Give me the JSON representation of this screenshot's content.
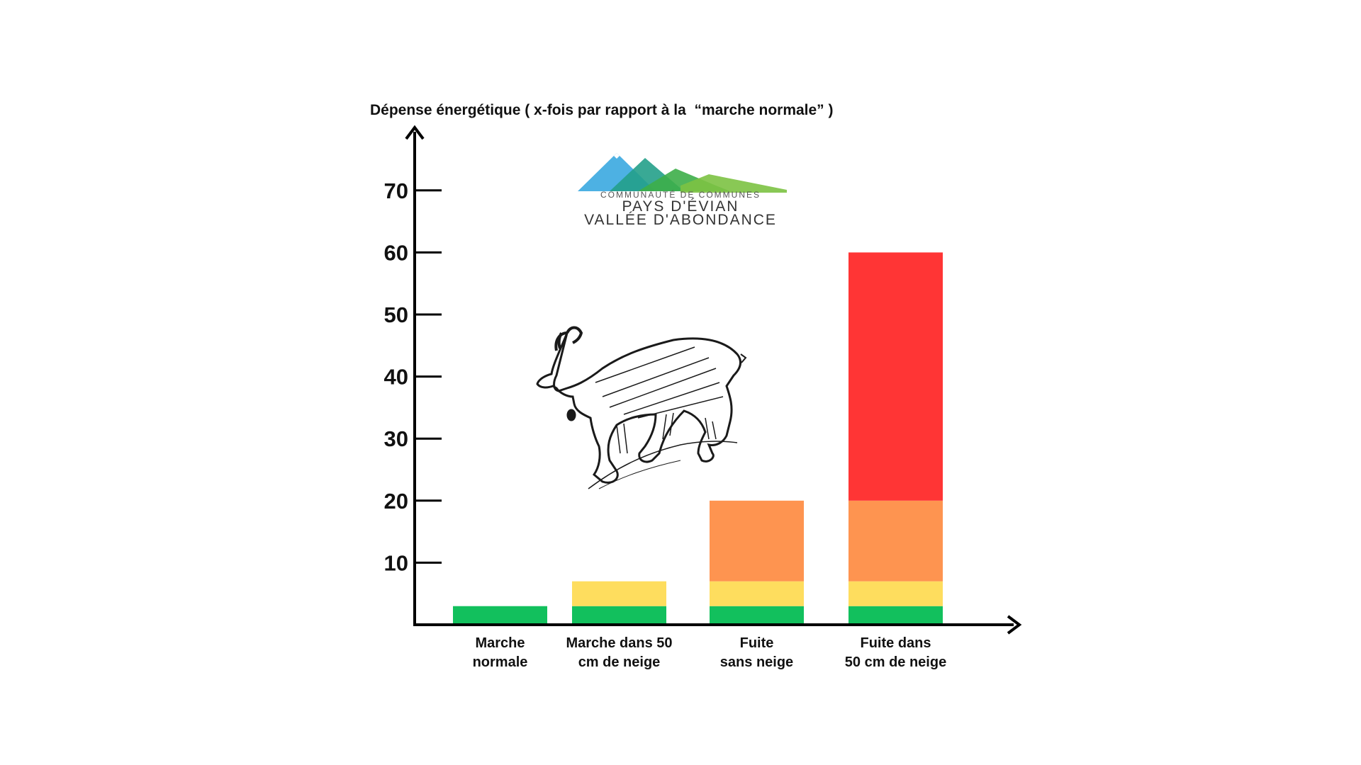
{
  "chart_data": {
    "type": "bar",
    "stacked": true,
    "ylabel": "Dépense énergétique ( x-fois par rapport à la  “marche normale” )",
    "xlabel": "",
    "ylim": [
      0,
      80
    ],
    "yticks": [
      10,
      20,
      30,
      40,
      50,
      60,
      70
    ],
    "ytick_positions": [
      10,
      20,
      30,
      40,
      50,
      60,
      70
    ],
    "categories": [
      "Marche\nnormale",
      "Marche dans 50\ncm de neige",
      "Fuite\nsans neige",
      "Fuite dans\n50 cm de neige"
    ],
    "series": [
      {
        "color": "#12c05d",
        "values": [
          3,
          3,
          3,
          3
        ]
      },
      {
        "color": "#fedd5e",
        "values": [
          0,
          4,
          4,
          4
        ]
      },
      {
        "color": "#fe9450",
        "values": [
          0,
          0,
          13,
          13
        ]
      },
      {
        "color": "#ff3535",
        "values": [
          0,
          0,
          0,
          40
        ]
      }
    ],
    "grid": false,
    "legend": "none"
  },
  "logo": {
    "line1": "COMMUNAUTÉ DE COMMUNES",
    "line2": "PAYS D'ÉVIAN",
    "line3": "VALLÉE D'ABONDANCE",
    "colors": [
      "#3aa9e0",
      "#23a08a",
      "#3dae49",
      "#7cc242"
    ]
  },
  "illustration": "chamois-icon"
}
